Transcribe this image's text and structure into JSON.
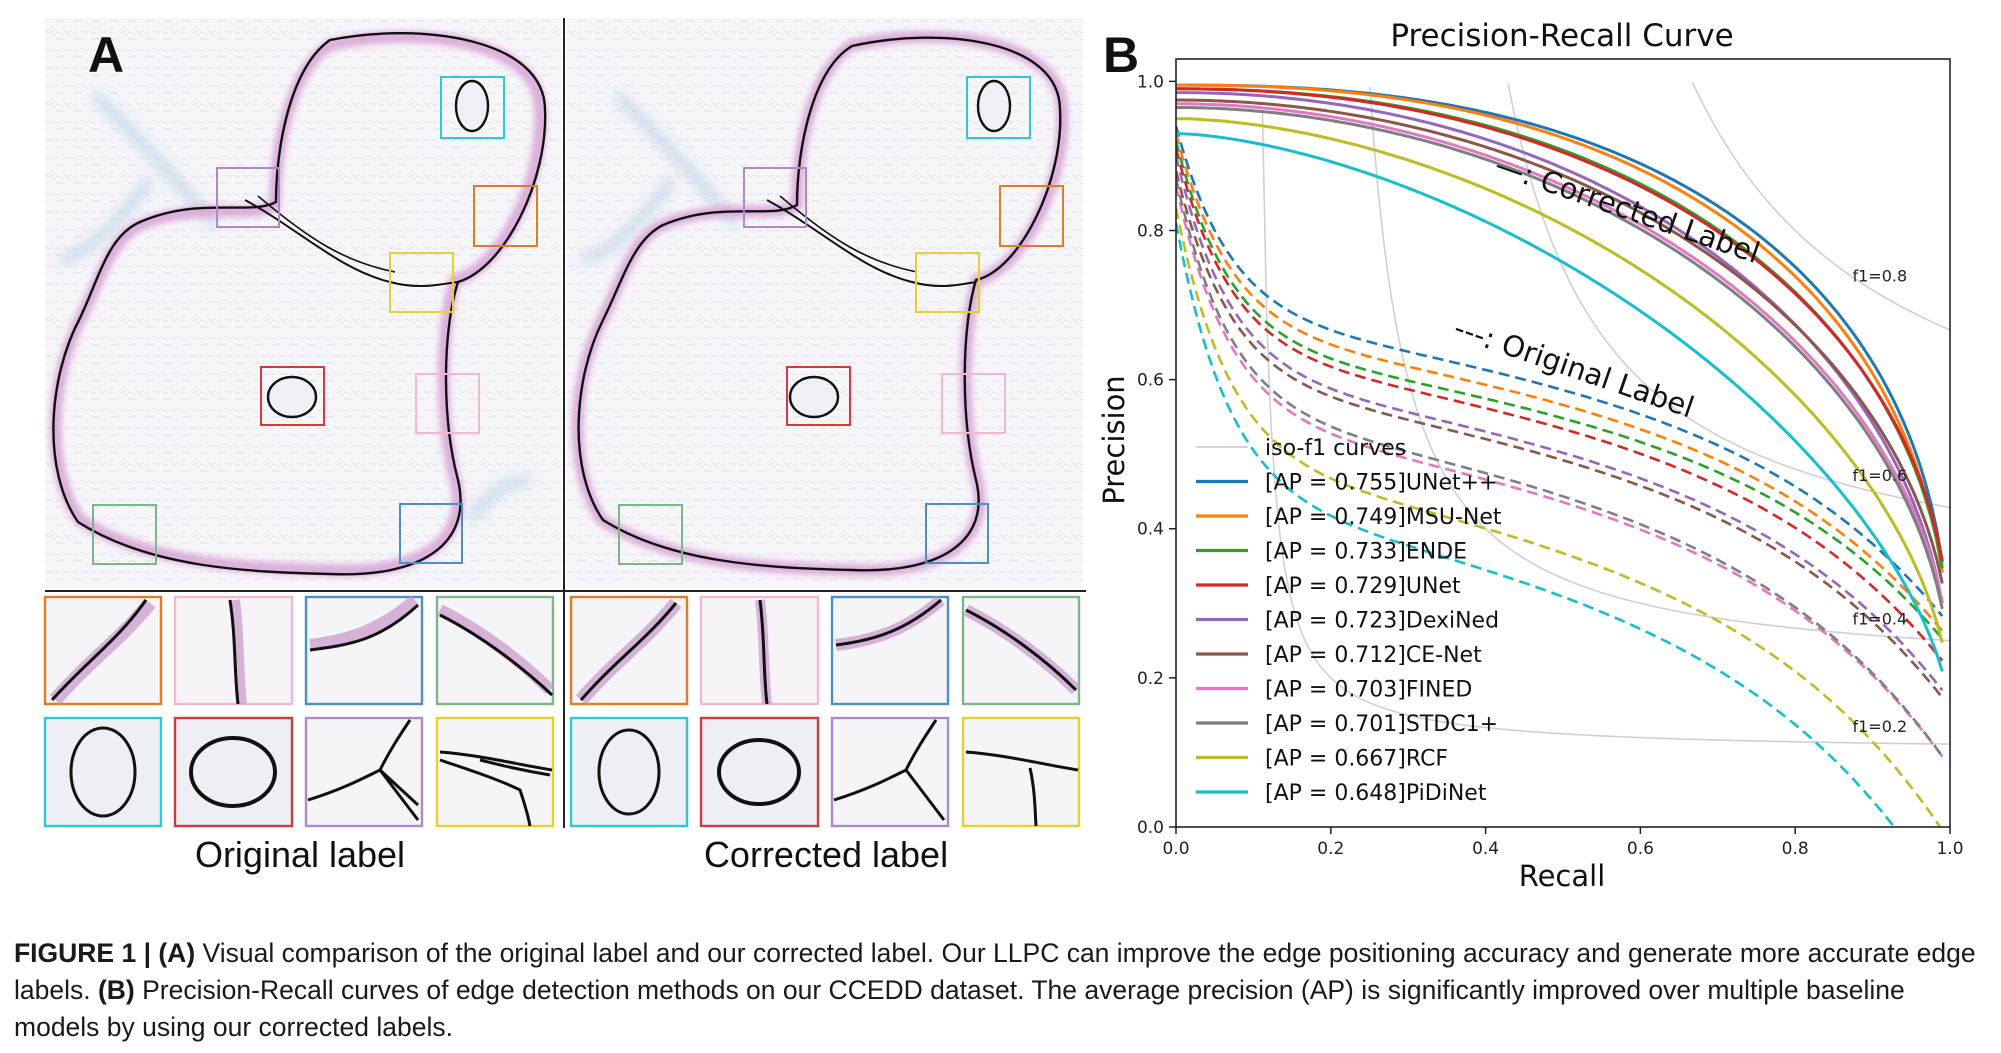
{
  "panel_a": {
    "label": "A",
    "original_caption": "Original label",
    "corrected_caption": "Corrected label",
    "box_colors": {
      "orange": "#e07c24",
      "pink": "#f0b9cf",
      "blue": "#4c8fc0",
      "green": "#7fb58a",
      "cyan": "#2ec9d4",
      "red": "#d33a3a",
      "purple": "#a98bc8",
      "yellow": "#e6d22e"
    }
  },
  "panel_b": {
    "label": "B"
  },
  "chart_data": {
    "type": "line",
    "title": "Precision-Recall Curve",
    "xlabel": "Recall",
    "ylabel": "Precision",
    "xlim": [
      0,
      1
    ],
    "ylim": [
      0,
      1.03
    ],
    "xticks": [
      "0.0",
      "0.2",
      "0.4",
      "0.6",
      "0.8",
      "1.0"
    ],
    "yticks": [
      "0.0",
      "0.2",
      "0.4",
      "0.6",
      "0.8",
      "1.0"
    ],
    "iso_f1": [
      {
        "f": 0.2,
        "label": "f1=0.2"
      },
      {
        "f": 0.4,
        "label": "f1=0.4"
      },
      {
        "f": 0.6,
        "label": "f1=0.6"
      },
      {
        "f": 0.8,
        "label": "f1=0.8"
      }
    ],
    "iso_f1_legend": "iso-f1 curves",
    "iso_f1_color": "#d0d0d0",
    "annotations": {
      "corrected": "—: Corrected Label",
      "original": "---: Original Label"
    },
    "legend_position": "lower-left",
    "series": [
      {
        "name": "[AP = 0.755]UNet++",
        "color": "#1f77b4",
        "corrected": {
          "p0": 0.995,
          "p1": 0.175,
          "k": 2.45
        },
        "original": {
          "p0": 0.94,
          "p1": 0.2,
          "a": 0.27,
          "c": 0.6
        }
      },
      {
        "name": "[AP = 0.749]MSU-Net",
        "color": "#ff7f0e",
        "corrected": {
          "p0": 0.995,
          "p1": 0.17,
          "k": 2.38
        },
        "original": {
          "p0": 0.93,
          "p1": 0.2,
          "a": 0.28,
          "c": 0.6
        }
      },
      {
        "name": "[AP = 0.733]ENDE",
        "color": "#2ca02c",
        "corrected": {
          "p0": 0.99,
          "p1": 0.21,
          "k": 2.2
        },
        "original": {
          "p0": 0.92,
          "p1": 0.22,
          "a": 0.29,
          "c": 0.61
        }
      },
      {
        "name": "[AP = 0.729]UNet",
        "color": "#d62728",
        "corrected": {
          "p0": 0.99,
          "p1": 0.23,
          "k": 2.15
        },
        "original": {
          "p0": 0.91,
          "p1": 0.21,
          "a": 0.29,
          "c": 0.62
        }
      },
      {
        "name": "[AP = 0.723]DexiNed",
        "color": "#9467bd",
        "corrected": {
          "p0": 0.985,
          "p1": 0.18,
          "k": 2.05
        },
        "original": {
          "p0": 0.9,
          "p1": 0.2,
          "a": 0.31,
          "c": 0.62
        }
      },
      {
        "name": "[AP = 0.712]CE-Net",
        "color": "#8c564b",
        "corrected": {
          "p0": 0.975,
          "p1": 0.22,
          "k": 2.0
        },
        "original": {
          "p0": 0.88,
          "p1": 0.22,
          "a": 0.3,
          "c": 0.64
        }
      },
      {
        "name": "[AP = 0.703]FINED",
        "color": "#e377c2",
        "corrected": {
          "p0": 0.97,
          "p1": 0.2,
          "k": 1.95
        },
        "original": {
          "p0": 0.86,
          "p1": 0.2,
          "a": 0.33,
          "c": 0.65
        }
      },
      {
        "name": "[AP = 0.701]STDC1+",
        "color": "#7f7f7f",
        "corrected": {
          "p0": 0.965,
          "p1": 0.19,
          "k": 1.95
        },
        "original": {
          "p0": 0.87,
          "p1": 0.18,
          "a": 0.33,
          "c": 0.64
        }
      },
      {
        "name": "[AP = 0.667]RCF",
        "color": "#bcbd22",
        "corrected": {
          "p0": 0.95,
          "p1": 0.17,
          "k": 1.75
        },
        "original": {
          "p0": 0.83,
          "p1": 0.17,
          "a": 0.36,
          "c": 0.66
        }
      },
      {
        "name": "[AP = 0.648]PiDiNet",
        "color": "#17becf",
        "corrected": {
          "p0": 0.93,
          "p1": 0.15,
          "k": 1.6
        },
        "original": {
          "p0": 0.81,
          "p1": 0.15,
          "a": 0.39,
          "c": 0.68
        }
      }
    ]
  },
  "caption": {
    "figure_label": "FIGURE 1 | (A)",
    "part_a": " Visual comparison of the original label and our corrected label. Our LLPC can improve the edge positioning accuracy and generate more accurate edge labels. ",
    "label_b": "(B)",
    "part_b": " Precision-Recall curves of edge detection methods on our CCEDD dataset. The average precision (AP) is significantly improved over multiple baseline models by using our corrected labels."
  }
}
